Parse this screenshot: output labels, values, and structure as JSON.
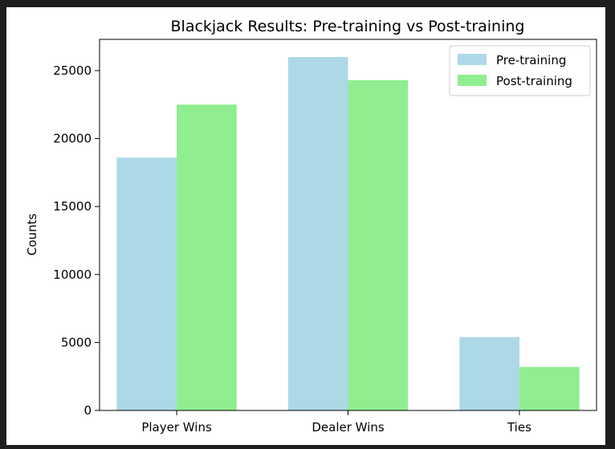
{
  "chart_data": {
    "type": "bar",
    "title": "Blackjack Results: Pre-training vs Post-training",
    "xlabel": "",
    "ylabel": "Counts",
    "categories": [
      "Player Wins",
      "Dealer Wins",
      "Ties"
    ],
    "series": [
      {
        "name": "Pre-training",
        "color": "#add8e6",
        "values": [
          18600,
          26000,
          5400
        ]
      },
      {
        "name": "Post-training",
        "color": "#90ee90",
        "values": [
          22500,
          24300,
          3200
        ]
      }
    ],
    "ylim": [
      0,
      27300
    ],
    "yticks": [
      0,
      5000,
      10000,
      15000,
      20000,
      25000
    ],
    "legend_position": "top-right",
    "grid": false
  }
}
